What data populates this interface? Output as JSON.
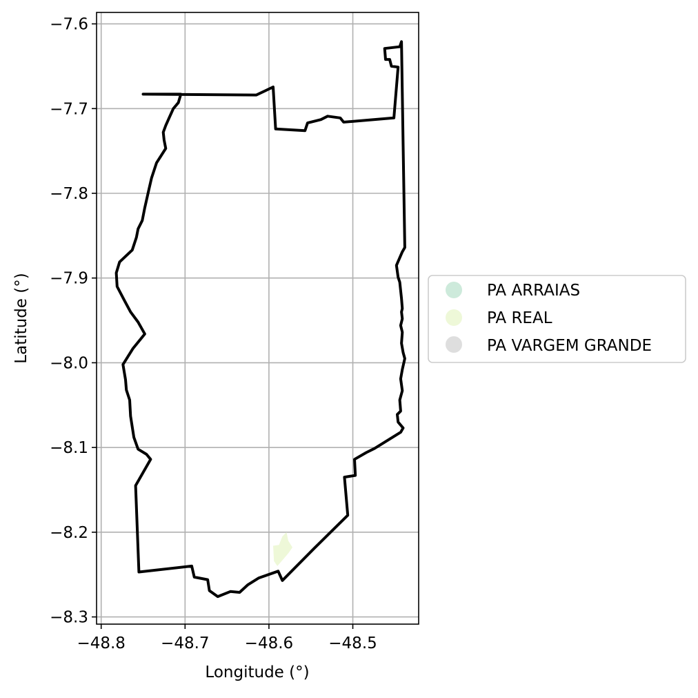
{
  "chart_data": {
    "type": "map",
    "xlabel": "Longitude (°)",
    "ylabel": "Latitude (°)",
    "xlim": [
      -48.8055,
      -48.4215
    ],
    "ylim": [
      -8.3085,
      -7.5865
    ],
    "grid": true,
    "legend_position": "right",
    "x_ticks": [
      {
        "value": -48.8,
        "label": "−48.8"
      },
      {
        "value": -48.7,
        "label": "−48.7"
      },
      {
        "value": -48.6,
        "label": "−48.6"
      },
      {
        "value": -48.5,
        "label": "−48.5"
      }
    ],
    "y_ticks": [
      {
        "value": -7.6,
        "label": "−7.6"
      },
      {
        "value": -7.7,
        "label": "−7.7"
      },
      {
        "value": -7.8,
        "label": "−7.8"
      },
      {
        "value": -7.9,
        "label": "−7.9"
      },
      {
        "value": -8.0,
        "label": "−8.0"
      },
      {
        "value": -8.1,
        "label": "−8.1"
      },
      {
        "value": -8.2,
        "label": "−8.2"
      },
      {
        "value": -8.3,
        "label": "−8.3"
      }
    ],
    "legend": [
      {
        "label": "PA ARRAIAS",
        "color": "#cdeadb"
      },
      {
        "label": "PA REAL",
        "color": "#eef8d8"
      },
      {
        "label": "PA VARGEM GRANDE",
        "color": "#dedede"
      }
    ],
    "boundary_color": "#000000",
    "boundary": [
      [
        -48.75,
        -7.683
      ],
      [
        -48.615,
        -7.684
      ],
      [
        -48.595,
        -7.6745
      ],
      [
        -48.592,
        -7.724
      ],
      [
        -48.557,
        -7.726
      ],
      [
        -48.554,
        -7.717
      ],
      [
        -48.538,
        -7.713
      ],
      [
        -48.53,
        -7.709
      ],
      [
        -48.515,
        -7.711
      ],
      [
        -48.511,
        -7.716
      ],
      [
        -48.451,
        -7.711
      ],
      [
        -48.446,
        -7.651
      ],
      [
        -48.454,
        -7.65
      ],
      [
        -48.456,
        -7.642
      ],
      [
        -48.461,
        -7.642
      ],
      [
        -48.462,
        -7.629
      ],
      [
        -48.444,
        -7.627
      ],
      [
        -48.442,
        -7.621
      ],
      [
        -48.44,
        -7.744
      ],
      [
        -48.438,
        -7.864
      ],
      [
        -48.441,
        -7.869
      ],
      [
        -48.448,
        -7.885
      ],
      [
        -48.446,
        -7.899
      ],
      [
        -48.444,
        -7.905
      ],
      [
        -48.442,
        -7.924
      ],
      [
        -48.441,
        -7.936
      ],
      [
        -48.442,
        -7.94
      ],
      [
        -48.441,
        -7.948
      ],
      [
        -48.443,
        -7.956
      ],
      [
        -48.441,
        -7.964
      ],
      [
        -48.442,
        -7.977
      ],
      [
        -48.44,
        -7.988
      ],
      [
        -48.438,
        -7.995
      ],
      [
        -48.441,
        -8.008
      ],
      [
        -48.443,
        -8.019
      ],
      [
        -48.441,
        -8.033
      ],
      [
        -48.444,
        -8.044
      ],
      [
        -48.443,
        -8.057
      ],
      [
        -48.447,
        -8.061
      ],
      [
        -48.446,
        -8.07
      ],
      [
        -48.44,
        -8.077
      ],
      [
        -48.443,
        -8.082
      ],
      [
        -48.474,
        -8.101
      ],
      [
        -48.484,
        -8.106
      ],
      [
        -48.498,
        -8.114
      ],
      [
        -48.497,
        -8.133
      ],
      [
        -48.51,
        -8.135
      ],
      [
        -48.506,
        -8.18
      ],
      [
        -48.546,
        -8.219
      ],
      [
        -48.584,
        -8.257
      ],
      [
        -48.589,
        -8.246
      ],
      [
        -48.612,
        -8.254
      ],
      [
        -48.625,
        -8.262
      ],
      [
        -48.635,
        -8.271
      ],
      [
        -48.646,
        -8.27
      ],
      [
        -48.661,
        -8.276
      ],
      [
        -48.671,
        -8.269
      ],
      [
        -48.673,
        -8.256
      ],
      [
        -48.689,
        -8.253
      ],
      [
        -48.692,
        -8.24
      ],
      [
        -48.755,
        -8.247
      ],
      [
        -48.759,
        -8.145
      ],
      [
        -48.741,
        -8.114
      ],
      [
        -48.746,
        -8.108
      ],
      [
        -48.756,
        -8.102
      ],
      [
        -48.761,
        -8.088
      ],
      [
        -48.765,
        -8.063
      ],
      [
        -48.766,
        -8.044
      ],
      [
        -48.77,
        -8.032
      ],
      [
        -48.771,
        -8.02
      ],
      [
        -48.774,
        -8.002
      ],
      [
        -48.762,
        -7.983
      ],
      [
        -48.748,
        -7.966
      ],
      [
        -48.756,
        -7.952
      ],
      [
        -48.765,
        -7.94
      ],
      [
        -48.772,
        -7.927
      ],
      [
        -48.781,
        -7.91
      ],
      [
        -48.782,
        -7.894
      ],
      [
        -48.778,
        -7.881
      ],
      [
        -48.763,
        -7.867
      ],
      [
        -48.758,
        -7.852
      ],
      [
        -48.756,
        -7.842
      ],
      [
        -48.751,
        -7.832
      ],
      [
        -48.748,
        -7.817
      ],
      [
        -48.743,
        -7.795
      ],
      [
        -48.74,
        -7.782
      ],
      [
        -48.734,
        -7.764
      ],
      [
        -48.723,
        -7.747
      ],
      [
        -48.725,
        -7.737
      ],
      [
        -48.726,
        -7.728
      ],
      [
        -48.723,
        -7.72
      ],
      [
        -48.719,
        -7.711
      ],
      [
        -48.714,
        -7.7
      ],
      [
        -48.708,
        -7.693
      ],
      [
        -48.705,
        -7.683
      ],
      [
        -48.75,
        -7.683
      ]
    ],
    "areas": [
      {
        "label": "PA REAL",
        "color": "#eef8d8",
        "polygon": [
          [
            -48.595,
            -8.216
          ],
          [
            -48.588,
            -8.215
          ],
          [
            -48.584,
            -8.205
          ],
          [
            -48.579,
            -8.2
          ],
          [
            -48.577,
            -8.21
          ],
          [
            -48.572,
            -8.218
          ],
          [
            -48.577,
            -8.225
          ],
          [
            -48.583,
            -8.232
          ],
          [
            -48.59,
            -8.24
          ],
          [
            -48.594,
            -8.234
          ],
          [
            -48.595,
            -8.216
          ]
        ]
      }
    ]
  }
}
